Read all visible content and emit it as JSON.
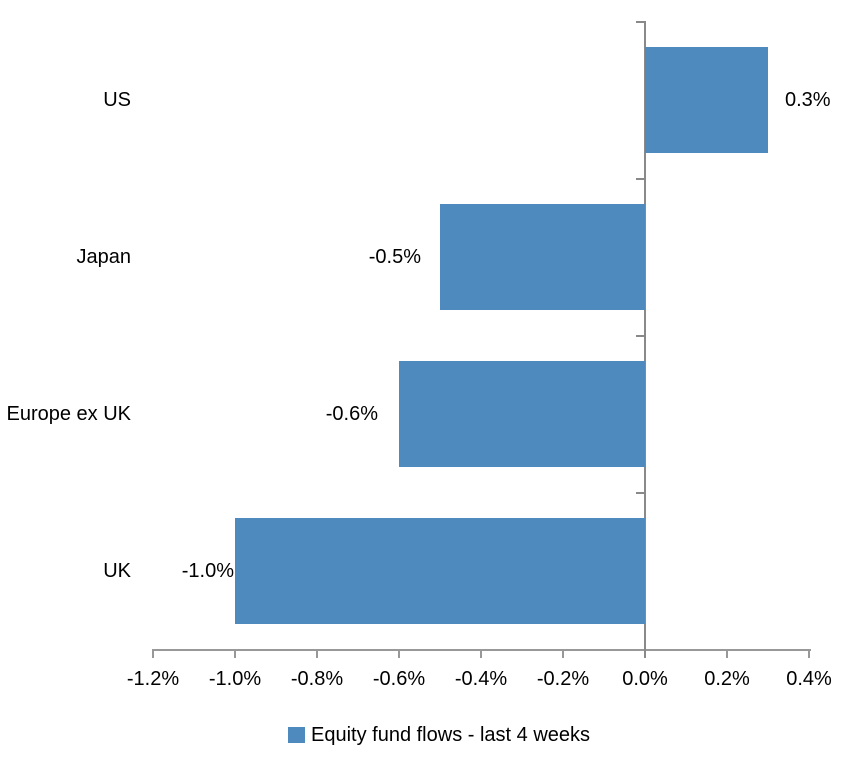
{
  "chart_data": {
    "type": "bar",
    "orientation": "horizontal",
    "title": "",
    "xlabel": "",
    "ylabel": "",
    "categories": [
      "US",
      "Japan",
      "Europe ex UK",
      "UK"
    ],
    "series": [
      {
        "name": "Equity fund flows - last 4 weeks",
        "values": [
          0.3,
          -0.5,
          -0.6,
          -1.0
        ],
        "data_labels": [
          "0.3%",
          "-0.5%",
          "-0.6%",
          "-1.0%"
        ]
      }
    ],
    "xlim": [
      -1.2,
      0.4
    ],
    "xtick_step": 0.2,
    "xtick_labels": [
      "-1.2%",
      "-1.0%",
      "-0.8%",
      "-0.6%",
      "-0.4%",
      "-0.2%",
      "0.0%",
      "0.2%",
      "0.4%"
    ],
    "grid": false,
    "legend_position": "bottom",
    "colors": {
      "bar": "#4E8ABE",
      "x_axis": "#989898",
      "zero_line": "#898989",
      "text": "#000000",
      "background": "#FFFFFF"
    }
  }
}
